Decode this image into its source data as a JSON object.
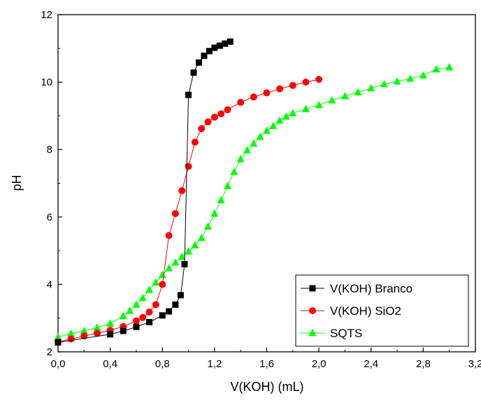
{
  "chart_data": {
    "type": "line",
    "xlabel": "V(KOH) (mL)",
    "ylabel": "pH",
    "xlim": [
      0.0,
      3.2
    ],
    "ylim": [
      2,
      12
    ],
    "x_ticks": [
      "0,0",
      "0,4",
      "0,8",
      "1,2",
      "1,6",
      "2,0",
      "2,4",
      "2,8",
      "3,2"
    ],
    "y_ticks": [
      "2",
      "4",
      "6",
      "8",
      "10",
      "12"
    ],
    "legend_position": "bottom-right",
    "series": [
      {
        "name": "V(KOH) Branco",
        "marker": "square",
        "color": "#000000",
        "points": [
          [
            0.0,
            2.28
          ],
          [
            0.4,
            2.52
          ],
          [
            0.5,
            2.62
          ],
          [
            0.6,
            2.74
          ],
          [
            0.7,
            2.88
          ],
          [
            0.8,
            3.08
          ],
          [
            0.85,
            3.2
          ],
          [
            0.9,
            3.4
          ],
          [
            0.94,
            3.68
          ],
          [
            0.97,
            4.6
          ],
          [
            1.0,
            9.62
          ],
          [
            1.04,
            10.28
          ],
          [
            1.08,
            10.58
          ],
          [
            1.12,
            10.78
          ],
          [
            1.16,
            10.92
          ],
          [
            1.2,
            11.02
          ],
          [
            1.24,
            11.08
          ],
          [
            1.28,
            11.14
          ],
          [
            1.32,
            11.2
          ]
        ]
      },
      {
        "name": "V(KOH) SiO2",
        "marker": "circle",
        "color": "#ff0000",
        "points": [
          [
            0.0,
            2.3
          ],
          [
            0.1,
            2.38
          ],
          [
            0.2,
            2.47
          ],
          [
            0.3,
            2.55
          ],
          [
            0.4,
            2.64
          ],
          [
            0.5,
            2.75
          ],
          [
            0.6,
            2.92
          ],
          [
            0.65,
            3.02
          ],
          [
            0.7,
            3.18
          ],
          [
            0.75,
            3.4
          ],
          [
            0.8,
            4.0
          ],
          [
            0.85,
            5.45
          ],
          [
            0.9,
            6.1
          ],
          [
            0.95,
            6.78
          ],
          [
            1.0,
            7.5
          ],
          [
            1.05,
            8.22
          ],
          [
            1.1,
            8.62
          ],
          [
            1.15,
            8.82
          ],
          [
            1.2,
            8.96
          ],
          [
            1.25,
            9.06
          ],
          [
            1.3,
            9.18
          ],
          [
            1.4,
            9.4
          ],
          [
            1.5,
            9.56
          ],
          [
            1.6,
            9.68
          ],
          [
            1.7,
            9.8
          ],
          [
            1.8,
            9.9
          ],
          [
            1.9,
            10.0
          ],
          [
            2.0,
            10.08
          ]
        ]
      },
      {
        "name": "SQTS",
        "marker": "triangle",
        "color": "#00ff00",
        "points": [
          [
            0.0,
            2.44
          ],
          [
            0.1,
            2.54
          ],
          [
            0.2,
            2.62
          ],
          [
            0.3,
            2.72
          ],
          [
            0.4,
            2.84
          ],
          [
            0.5,
            3.06
          ],
          [
            0.55,
            3.22
          ],
          [
            0.6,
            3.4
          ],
          [
            0.65,
            3.6
          ],
          [
            0.7,
            3.84
          ],
          [
            0.75,
            4.06
          ],
          [
            0.8,
            4.28
          ],
          [
            0.85,
            4.48
          ],
          [
            0.9,
            4.65
          ],
          [
            0.95,
            4.82
          ],
          [
            1.0,
            4.98
          ],
          [
            1.05,
            5.16
          ],
          [
            1.1,
            5.38
          ],
          [
            1.15,
            5.72
          ],
          [
            1.2,
            6.1
          ],
          [
            1.25,
            6.5
          ],
          [
            1.3,
            6.92
          ],
          [
            1.35,
            7.34
          ],
          [
            1.4,
            7.72
          ],
          [
            1.45,
            7.98
          ],
          [
            1.5,
            8.18
          ],
          [
            1.55,
            8.38
          ],
          [
            1.6,
            8.56
          ],
          [
            1.65,
            8.7
          ],
          [
            1.7,
            8.86
          ],
          [
            1.75,
            8.98
          ],
          [
            1.8,
            9.08
          ],
          [
            1.9,
            9.2
          ],
          [
            2.0,
            9.32
          ],
          [
            2.1,
            9.46
          ],
          [
            2.2,
            9.58
          ],
          [
            2.3,
            9.7
          ],
          [
            2.4,
            9.82
          ],
          [
            2.5,
            9.94
          ],
          [
            2.6,
            10.02
          ],
          [
            2.7,
            10.1
          ],
          [
            2.8,
            10.2
          ],
          [
            2.9,
            10.38
          ],
          [
            3.0,
            10.44
          ]
        ]
      }
    ]
  }
}
